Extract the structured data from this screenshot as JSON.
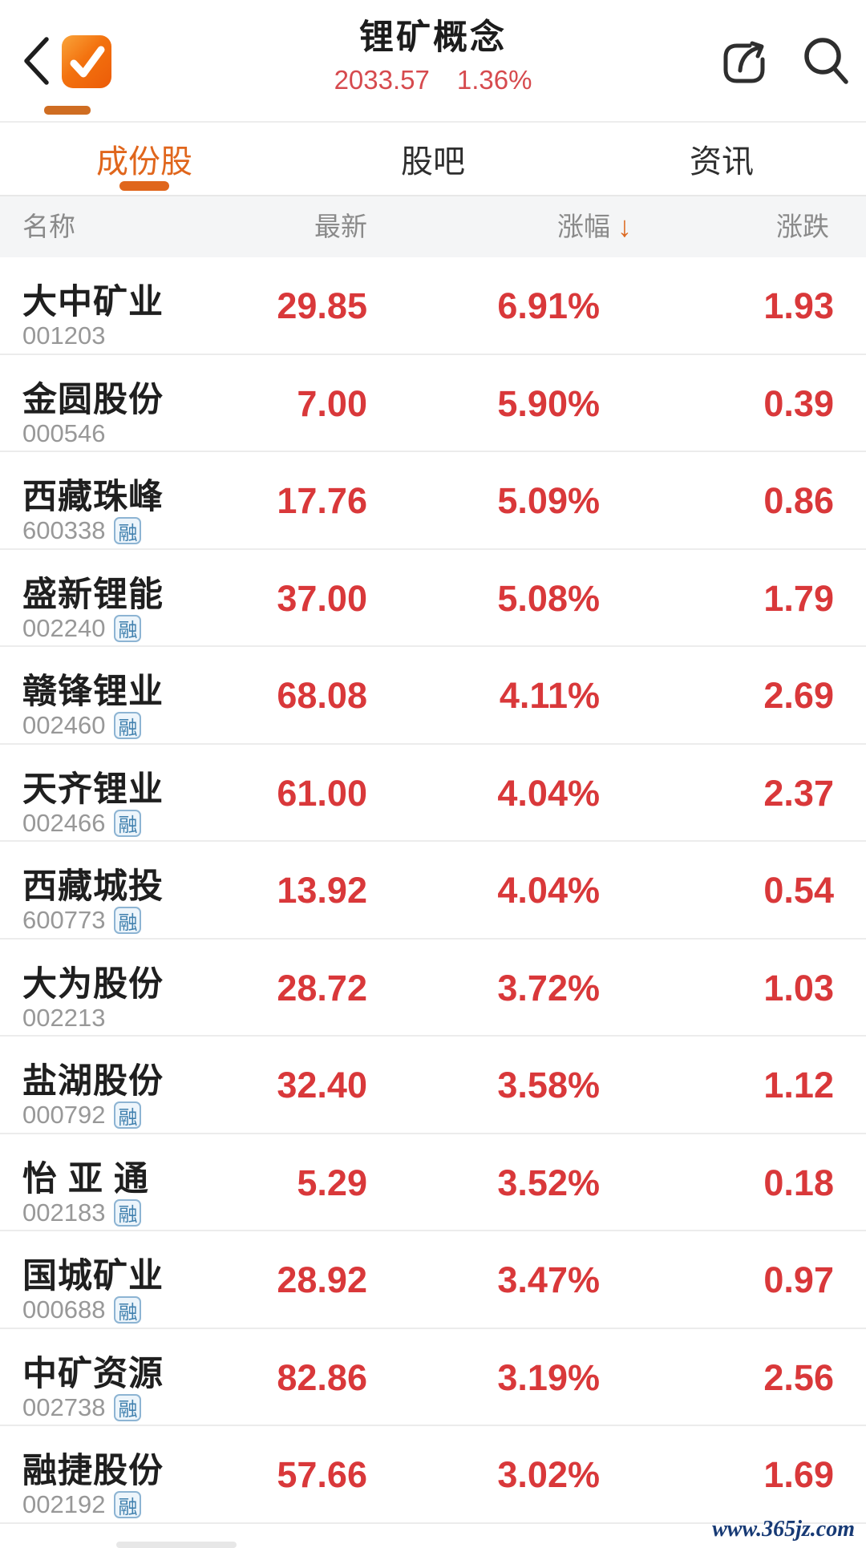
{
  "header": {
    "title": "锂矿概念",
    "index_value": "2033.57",
    "index_change_percent": "1.36%"
  },
  "tabs": [
    {
      "label": "成份股",
      "active": true
    },
    {
      "label": "股吧",
      "active": false
    },
    {
      "label": "资讯",
      "active": false
    }
  ],
  "table": {
    "columns": {
      "name": "名称",
      "latest": "最新",
      "change_percent": "涨幅",
      "change": "涨跌"
    },
    "sort_icon": "↓",
    "margin_badge_label": "融",
    "rows": [
      {
        "name": "大中矿业",
        "code": "001203",
        "margin": false,
        "latest": "29.85",
        "change_percent": "6.91%",
        "change": "1.93"
      },
      {
        "name": "金圆股份",
        "code": "000546",
        "margin": false,
        "latest": "7.00",
        "change_percent": "5.90%",
        "change": "0.39"
      },
      {
        "name": "西藏珠峰",
        "code": "600338",
        "margin": true,
        "latest": "17.76",
        "change_percent": "5.09%",
        "change": "0.86"
      },
      {
        "name": "盛新锂能",
        "code": "002240",
        "margin": true,
        "latest": "37.00",
        "change_percent": "5.08%",
        "change": "1.79"
      },
      {
        "name": "赣锋锂业",
        "code": "002460",
        "margin": true,
        "latest": "68.08",
        "change_percent": "4.11%",
        "change": "2.69"
      },
      {
        "name": "天齐锂业",
        "code": "002466",
        "margin": true,
        "latest": "61.00",
        "change_percent": "4.04%",
        "change": "2.37"
      },
      {
        "name": "西藏城投",
        "code": "600773",
        "margin": true,
        "latest": "13.92",
        "change_percent": "4.04%",
        "change": "0.54"
      },
      {
        "name": "大为股份",
        "code": "002213",
        "margin": false,
        "latest": "28.72",
        "change_percent": "3.72%",
        "change": "1.03"
      },
      {
        "name": "盐湖股份",
        "code": "000792",
        "margin": true,
        "latest": "32.40",
        "change_percent": "3.58%",
        "change": "1.12"
      },
      {
        "name": "怡 亚 通",
        "code": "002183",
        "margin": true,
        "latest": "5.29",
        "change_percent": "3.52%",
        "change": "0.18"
      },
      {
        "name": "国城矿业",
        "code": "000688",
        "margin": true,
        "latest": "28.92",
        "change_percent": "3.47%",
        "change": "0.97"
      },
      {
        "name": "中矿资源",
        "code": "002738",
        "margin": true,
        "latest": "82.86",
        "change_percent": "3.19%",
        "change": "2.56"
      },
      {
        "name": "融捷股份",
        "code": "002192",
        "margin": true,
        "latest": "57.66",
        "change_percent": "3.02%",
        "change": "1.69"
      }
    ]
  },
  "watermark": "www.365jz.com",
  "colors": {
    "accent_orange": "#e0661c",
    "number_red": "#d9383a",
    "subtitle_red": "#d64a4e",
    "badge_blue": "#4080ae",
    "header_gray": "#8a8a8a",
    "watermark_navy": "#173a75"
  }
}
